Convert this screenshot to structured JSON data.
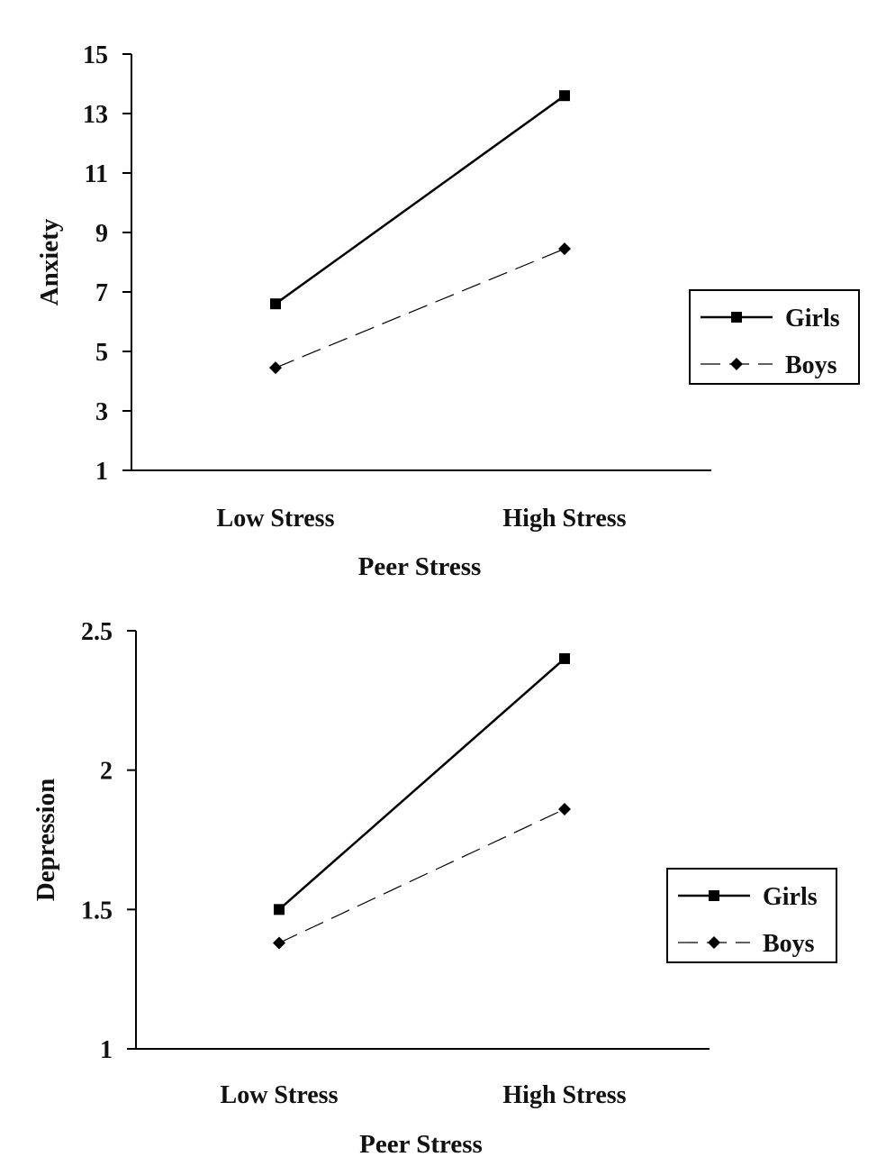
{
  "chart_data": [
    {
      "type": "line",
      "categories": [
        "Low Stress",
        "High Stress"
      ],
      "xlabel": "Peer Stress",
      "ylabel": "Anxiety",
      "ylim": [
        1,
        15
      ],
      "yticks": [
        "1",
        "3",
        "5",
        "7",
        "9",
        "11",
        "13",
        "15"
      ],
      "ytick_values": [
        1,
        3,
        5,
        7,
        9,
        11,
        13,
        15
      ],
      "grid": false,
      "legend": "right",
      "series": [
        {
          "name": "Girls",
          "values": [
            6.6,
            13.6
          ],
          "marker": "square",
          "line": "solid",
          "color": "#000000"
        },
        {
          "name": "Boys",
          "values": [
            4.45,
            8.45
          ],
          "marker": "diamond",
          "line": "dashed",
          "color": "#000000"
        }
      ]
    },
    {
      "type": "line",
      "categories": [
        "Low Stress",
        "High Stress"
      ],
      "xlabel": "Peer Stress",
      "ylabel": "Depression",
      "ylim": [
        1,
        2.5
      ],
      "yticks": [
        "1",
        "1.5",
        "2",
        "2.5"
      ],
      "ytick_values": [
        1,
        1.5,
        2,
        2.5
      ],
      "grid": false,
      "legend": "right",
      "series": [
        {
          "name": "Girls",
          "values": [
            1.5,
            2.4
          ],
          "marker": "square",
          "line": "solid",
          "color": "#000000"
        },
        {
          "name": "Boys",
          "values": [
            1.38,
            1.86
          ],
          "marker": "diamond",
          "line": "dashed",
          "color": "#000000"
        }
      ]
    }
  ]
}
